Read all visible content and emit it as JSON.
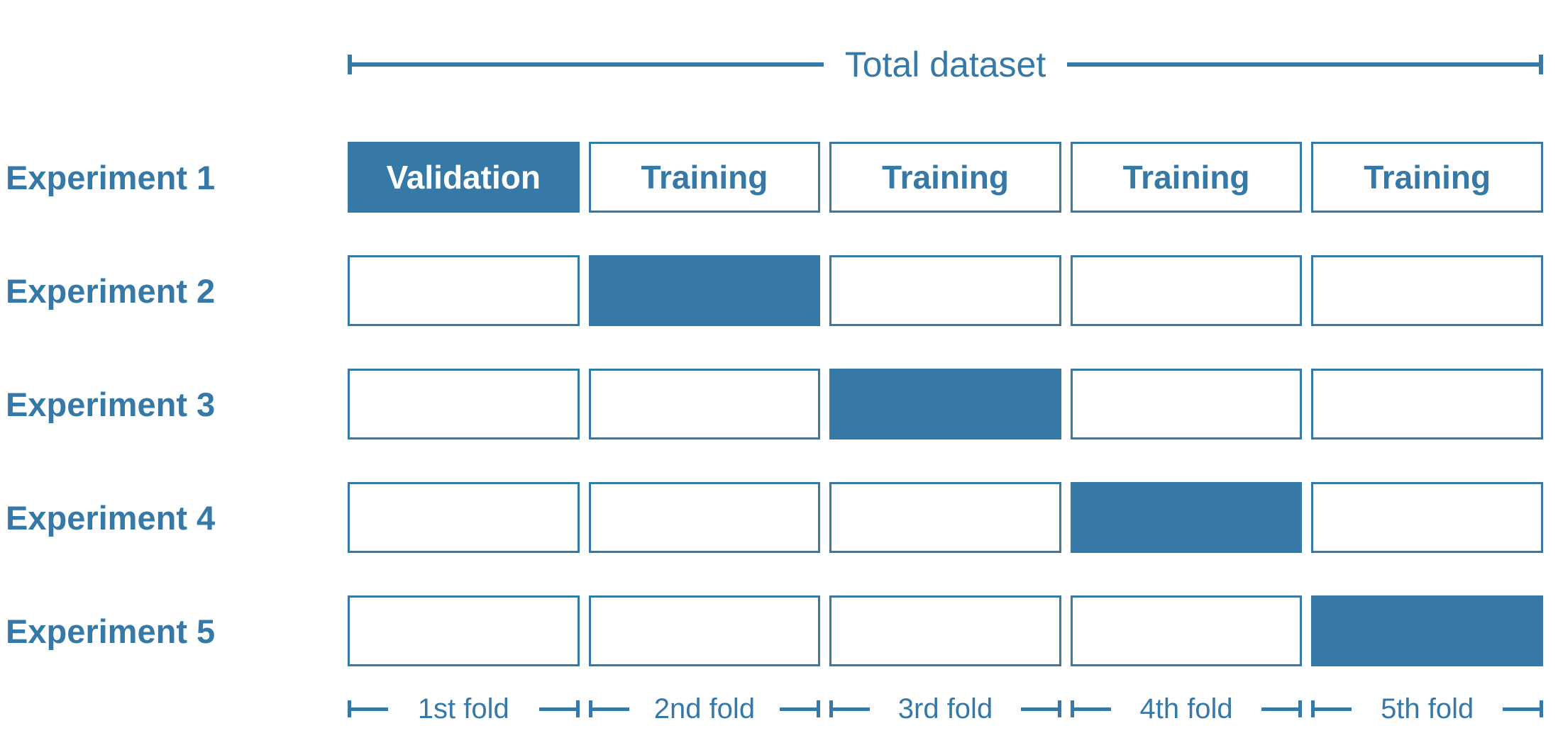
{
  "title": "Total dataset",
  "colors": {
    "accent": "#3678a6",
    "cell_background": "#ffffff",
    "filled_cell_text": "#ffffff"
  },
  "experiments": [
    {
      "label": "Experiment 1",
      "cells": [
        {
          "text": "Validation",
          "filled": true
        },
        {
          "text": "Training",
          "filled": false
        },
        {
          "text": "Training",
          "filled": false
        },
        {
          "text": "Training",
          "filled": false
        },
        {
          "text": "Training",
          "filled": false
        }
      ]
    },
    {
      "label": "Experiment 2",
      "cells": [
        {
          "text": "",
          "filled": false
        },
        {
          "text": "",
          "filled": true
        },
        {
          "text": "",
          "filled": false
        },
        {
          "text": "",
          "filled": false
        },
        {
          "text": "",
          "filled": false
        }
      ]
    },
    {
      "label": "Experiment 3",
      "cells": [
        {
          "text": "",
          "filled": false
        },
        {
          "text": "",
          "filled": false
        },
        {
          "text": "",
          "filled": true
        },
        {
          "text": "",
          "filled": false
        },
        {
          "text": "",
          "filled": false
        }
      ]
    },
    {
      "label": "Experiment 4",
      "cells": [
        {
          "text": "",
          "filled": false
        },
        {
          "text": "",
          "filled": false
        },
        {
          "text": "",
          "filled": false
        },
        {
          "text": "",
          "filled": true
        },
        {
          "text": "",
          "filled": false
        }
      ]
    },
    {
      "label": "Experiment 5",
      "cells": [
        {
          "text": "",
          "filled": false
        },
        {
          "text": "",
          "filled": false
        },
        {
          "text": "",
          "filled": false
        },
        {
          "text": "",
          "filled": false
        },
        {
          "text": "",
          "filled": true
        }
      ]
    }
  ],
  "folds": [
    "1st fold",
    "2nd fold",
    "3rd fold",
    "4th fold",
    "5th fold"
  ]
}
